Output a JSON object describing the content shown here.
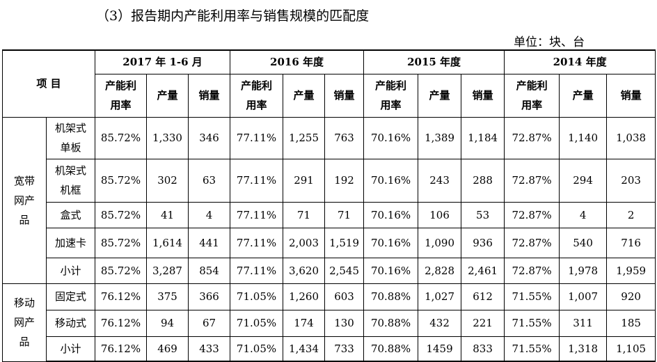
{
  "heading": "（3）报告期内产能利用率与销售规模的匹配度",
  "unit": "单位：块、台",
  "item_header": "项 目",
  "periods": [
    "2017 年 1-6 月",
    "2016 年度",
    "2015 年度",
    "2014 年度"
  ],
  "col_labels": {
    "util_line1": "产能利",
    "util_line2": "用率",
    "output": "产量",
    "sales": "销量"
  },
  "groups": [
    {
      "label_lines": [
        "宽带",
        "网产",
        "品"
      ],
      "rows": [
        {
          "name_lines": [
            "机架式",
            "单板"
          ],
          "cells": [
            "85.72%",
            "1,330",
            "346",
            "77.11%",
            "1,255",
            "763",
            "70.16%",
            "1,389",
            "1,184",
            "72.87%",
            "1,140",
            "1,038"
          ]
        },
        {
          "name_lines": [
            "机架式",
            "机框"
          ],
          "cells": [
            "85.72%",
            "302",
            "63",
            "77.11%",
            "291",
            "192",
            "70.16%",
            "243",
            "288",
            "72.87%",
            "294",
            "203"
          ]
        },
        {
          "name_lines": [
            "盒式"
          ],
          "cells": [
            "85.72%",
            "41",
            "4",
            "77.11%",
            "71",
            "71",
            "70.16%",
            "106",
            "53",
            "72.87%",
            "4",
            "2"
          ]
        },
        {
          "name_lines": [
            "加速卡"
          ],
          "cells": [
            "85.72%",
            "1,614",
            "441",
            "77.11%",
            "2,003",
            "1,519",
            "70.16%",
            "1,090",
            "936",
            "72.87%",
            "540",
            "716"
          ]
        },
        {
          "name_lines": [
            "小计"
          ],
          "cells": [
            "85.72%",
            "3,287",
            "854",
            "77.11%",
            "3,620",
            "2,545",
            "70.16%",
            "2,828",
            "2,461",
            "72.87%",
            "1,978",
            "1,959"
          ]
        }
      ]
    },
    {
      "label_lines": [
        "移动",
        "网产",
        "品"
      ],
      "rows": [
        {
          "name_lines": [
            "固定式"
          ],
          "cells": [
            "76.12%",
            "375",
            "366",
            "71.05%",
            "1,260",
            "603",
            "70.88%",
            "1,027",
            "612",
            "71.55%",
            "1,007",
            "920"
          ]
        },
        {
          "name_lines": [
            "移动式"
          ],
          "cells": [
            "76.12%",
            "94",
            "67",
            "71.05%",
            "174",
            "130",
            "70.88%",
            "432",
            "221",
            "71.55%",
            "311",
            "185"
          ]
        },
        {
          "name_lines": [
            "小计"
          ],
          "cells": [
            "76.12%",
            "469",
            "433",
            "71.05%",
            "1,434",
            "733",
            "70.88%",
            "1459",
            "833",
            "71.55%",
            "1,318",
            "1,105"
          ]
        }
      ]
    }
  ]
}
